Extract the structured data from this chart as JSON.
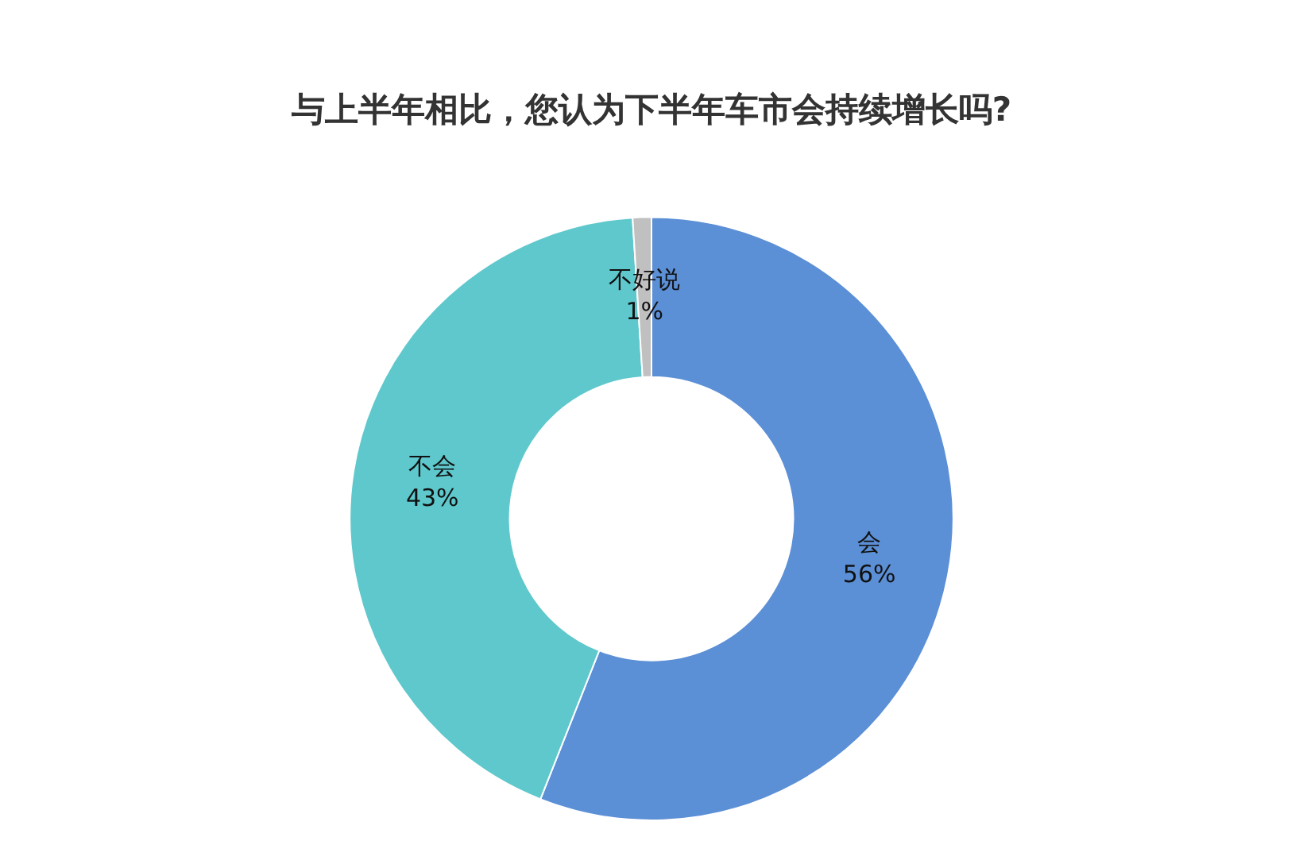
{
  "chart_data": {
    "type": "donut",
    "title": "与上半年相比，您认为下半年车市会持续增长吗?",
    "categories": [
      "会",
      "不会",
      "不好说"
    ],
    "values": [
      56,
      43,
      1
    ],
    "value_labels": [
      "56%",
      "43%",
      "1%"
    ],
    "colors": [
      "#5b8fd6",
      "#5ec8cc",
      "#c0c0c0"
    ],
    "legend": false
  }
}
